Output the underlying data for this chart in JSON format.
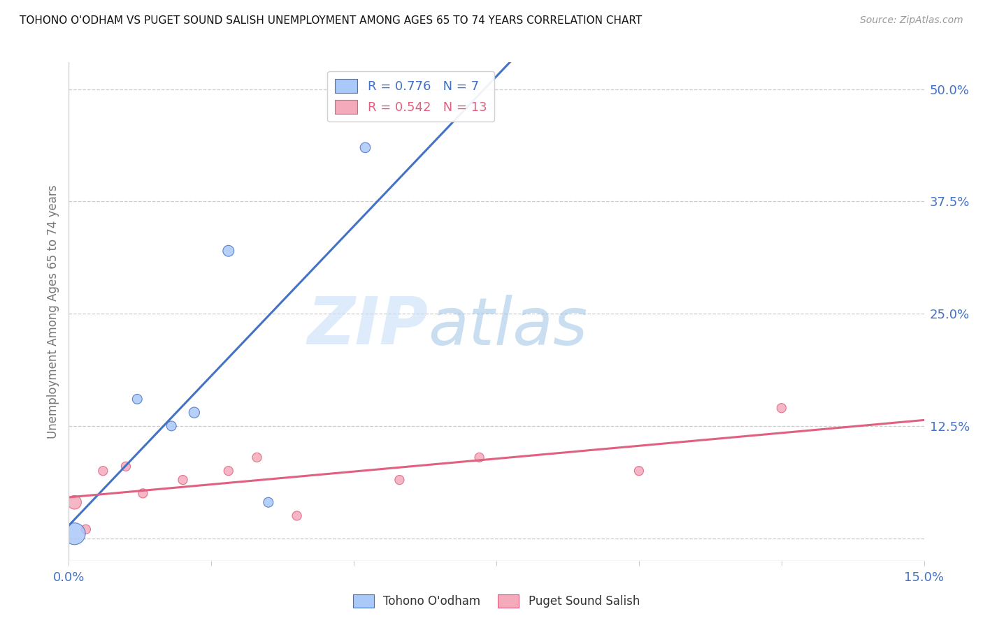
{
  "title": "TOHONO O'ODHAM VS PUGET SOUND SALISH UNEMPLOYMENT AMONG AGES 65 TO 74 YEARS CORRELATION CHART",
  "source": "Source: ZipAtlas.com",
  "ylabel": "Unemployment Among Ages 65 to 74 years",
  "xlim": [
    0.0,
    0.15
  ],
  "ylim": [
    -0.025,
    0.53
  ],
  "xticks": [
    0.0,
    0.025,
    0.05,
    0.075,
    0.1,
    0.125,
    0.15
  ],
  "xticklabels": [
    "0.0%",
    "",
    "",
    "",
    "",
    "",
    "15.0%"
  ],
  "yticks": [
    0.0,
    0.125,
    0.25,
    0.375,
    0.5
  ],
  "yticklabels": [
    "",
    "12.5%",
    "25.0%",
    "37.5%",
    "50.0%"
  ],
  "blue_color": "#aac8f8",
  "blue_line_color": "#4472c4",
  "pink_color": "#f4aabb",
  "pink_line_color": "#e06080",
  "blue_R": 0.776,
  "blue_N": 7,
  "pink_R": 0.542,
  "pink_N": 13,
  "blue_scatter_x": [
    0.001,
    0.012,
    0.018,
    0.022,
    0.028,
    0.035,
    0.052
  ],
  "blue_scatter_y": [
    0.005,
    0.155,
    0.125,
    0.14,
    0.32,
    0.04,
    0.435
  ],
  "blue_scatter_size": [
    500,
    100,
    100,
    120,
    130,
    100,
    110
  ],
  "pink_scatter_x": [
    0.001,
    0.003,
    0.006,
    0.01,
    0.013,
    0.02,
    0.028,
    0.033,
    0.04,
    0.058,
    0.072,
    0.1,
    0.125
  ],
  "pink_scatter_y": [
    0.04,
    0.01,
    0.075,
    0.08,
    0.05,
    0.065,
    0.075,
    0.09,
    0.025,
    0.065,
    0.09,
    0.075,
    0.145
  ],
  "pink_scatter_size": [
    200,
    90,
    90,
    90,
    90,
    90,
    90,
    90,
    90,
    90,
    90,
    90,
    90
  ],
  "watermark_zip": "ZIP",
  "watermark_atlas": "atlas",
  "legend_blue_label": "Tohono O'odham",
  "legend_pink_label": "Puget Sound Salish",
  "background_color": "#ffffff",
  "grid_color": "#cccccc",
  "axis_color": "#cccccc",
  "tick_color": "#4472c4",
  "ylabel_color": "#777777",
  "title_color": "#111111",
  "source_color": "#999999"
}
